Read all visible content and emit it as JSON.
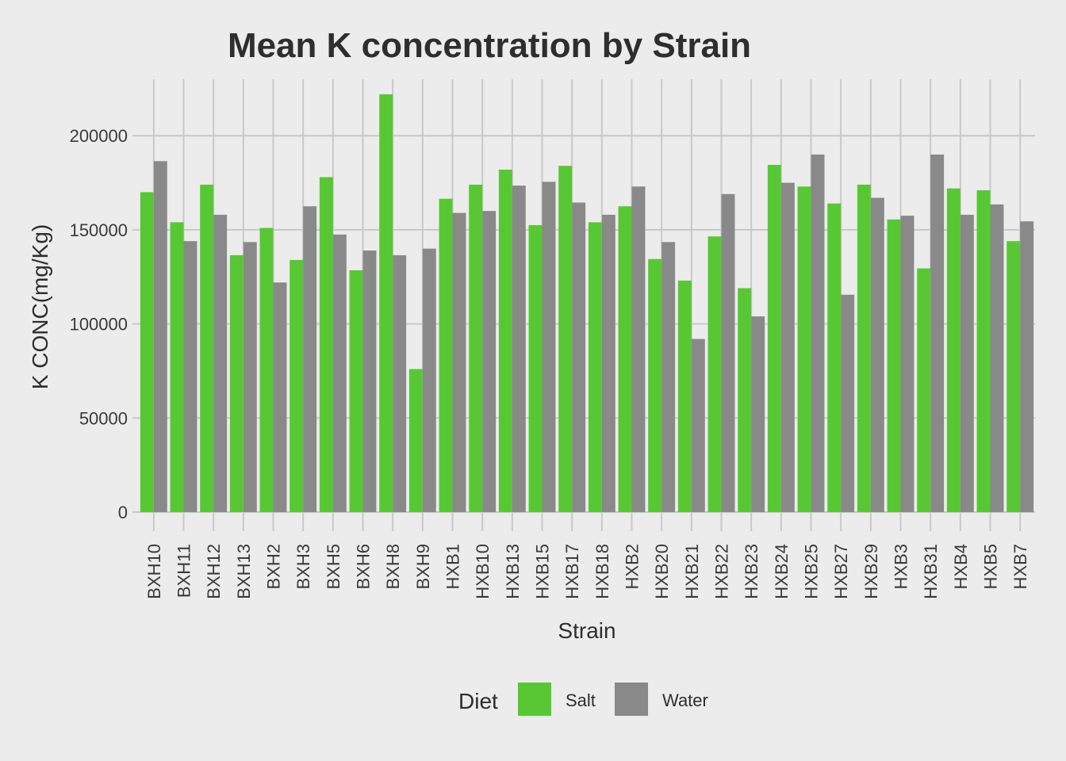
{
  "chart_data": {
    "type": "bar",
    "title": "Mean K concentration by Strain",
    "xlabel": "Strain",
    "ylabel": "K CONC(mg/Kg)",
    "ylim": [
      0,
      230000
    ],
    "yticks": [
      0,
      50000,
      100000,
      150000,
      200000
    ],
    "grid": true,
    "legend_position": "bottom",
    "legend_title": "Diet",
    "categories": [
      "BXH10",
      "BXH11",
      "BXH12",
      "BXH13",
      "BXH2",
      "BXH3",
      "BXH5",
      "BXH6",
      "BXH8",
      "BXH9",
      "HXB1",
      "HXB10",
      "HXB13",
      "HXB15",
      "HXB17",
      "HXB18",
      "HXB2",
      "HXB20",
      "HXB21",
      "HXB22",
      "HXB23",
      "HXB24",
      "HXB25",
      "HXB27",
      "HXB29",
      "HXB3",
      "HXB31",
      "HXB4",
      "HXB5",
      "HXB7"
    ],
    "series": [
      {
        "name": "Salt",
        "color": "#57c834",
        "values": [
          170000,
          154000,
          174000,
          136500,
          151000,
          134000,
          178000,
          128500,
          222000,
          76000,
          166500,
          174000,
          182000,
          152500,
          184000,
          154000,
          162500,
          134500,
          123000,
          146500,
          119000,
          184500,
          173000,
          164000,
          174000,
          155500,
          129500,
          172000,
          171000,
          144000
        ]
      },
      {
        "name": "Water",
        "color": "#898989",
        "values": [
          186500,
          144000,
          158000,
          143500,
          122000,
          162500,
          147500,
          139000,
          136500,
          140000,
          159000,
          160000,
          173500,
          175500,
          164500,
          158000,
          173000,
          143500,
          92000,
          169000,
          104000,
          175000,
          190000,
          115500,
          167000,
          157500,
          190000,
          158000,
          163500,
          154500
        ]
      }
    ]
  }
}
